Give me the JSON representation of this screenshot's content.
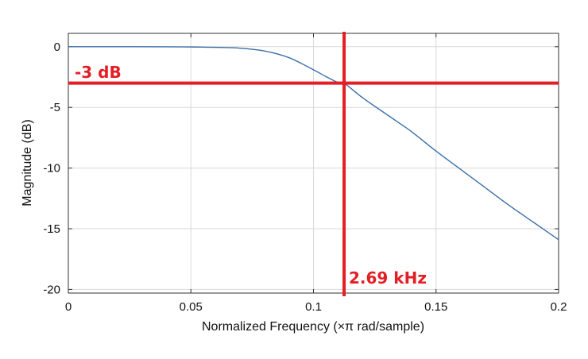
{
  "chart_data": {
    "type": "line",
    "title": "",
    "xlabel": "Normalized Frequency (×π rad/sample)",
    "ylabel": "Magnitude (dB)",
    "xlim": [
      0,
      0.2
    ],
    "ylim": [
      -20.3,
      1.1
    ],
    "xticks": [
      0,
      0.05,
      0.1,
      0.15,
      0.2
    ],
    "xtick_labels": [
      "0",
      "0.05",
      "0.1",
      "0.15",
      "0.2"
    ],
    "yticks": [
      0,
      -5,
      -10,
      -15,
      -20
    ],
    "ytick_labels": [
      "0",
      "-5",
      "-10",
      "-15",
      "-20"
    ],
    "grid": true,
    "series": [
      {
        "x": [
          0,
          0.02,
          0.04,
          0.05,
          0.06,
          0.07,
          0.08,
          0.09,
          0.1,
          0.105,
          0.11,
          0.1125,
          0.12,
          0.13,
          0.14,
          0.15,
          0.16,
          0.17,
          0.18,
          0.19,
          0.2
        ],
        "y": [
          0,
          0,
          -0.01,
          -0.02,
          -0.05,
          -0.12,
          -0.35,
          -0.9,
          -1.9,
          -2.45,
          -2.95,
          -3.0,
          -4.2,
          -5.6,
          -7.0,
          -8.6,
          -10.1,
          -11.6,
          -13.1,
          -14.5,
          -15.9
        ],
        "color": "#3b6fa8"
      }
    ],
    "annotations": {
      "cutoff_db": {
        "label": "-3 dB",
        "y": -3
      },
      "cutoff_freq": {
        "label": "2.69 kHz",
        "x": 0.1125
      }
    },
    "annotation_color": "#e31e24"
  }
}
